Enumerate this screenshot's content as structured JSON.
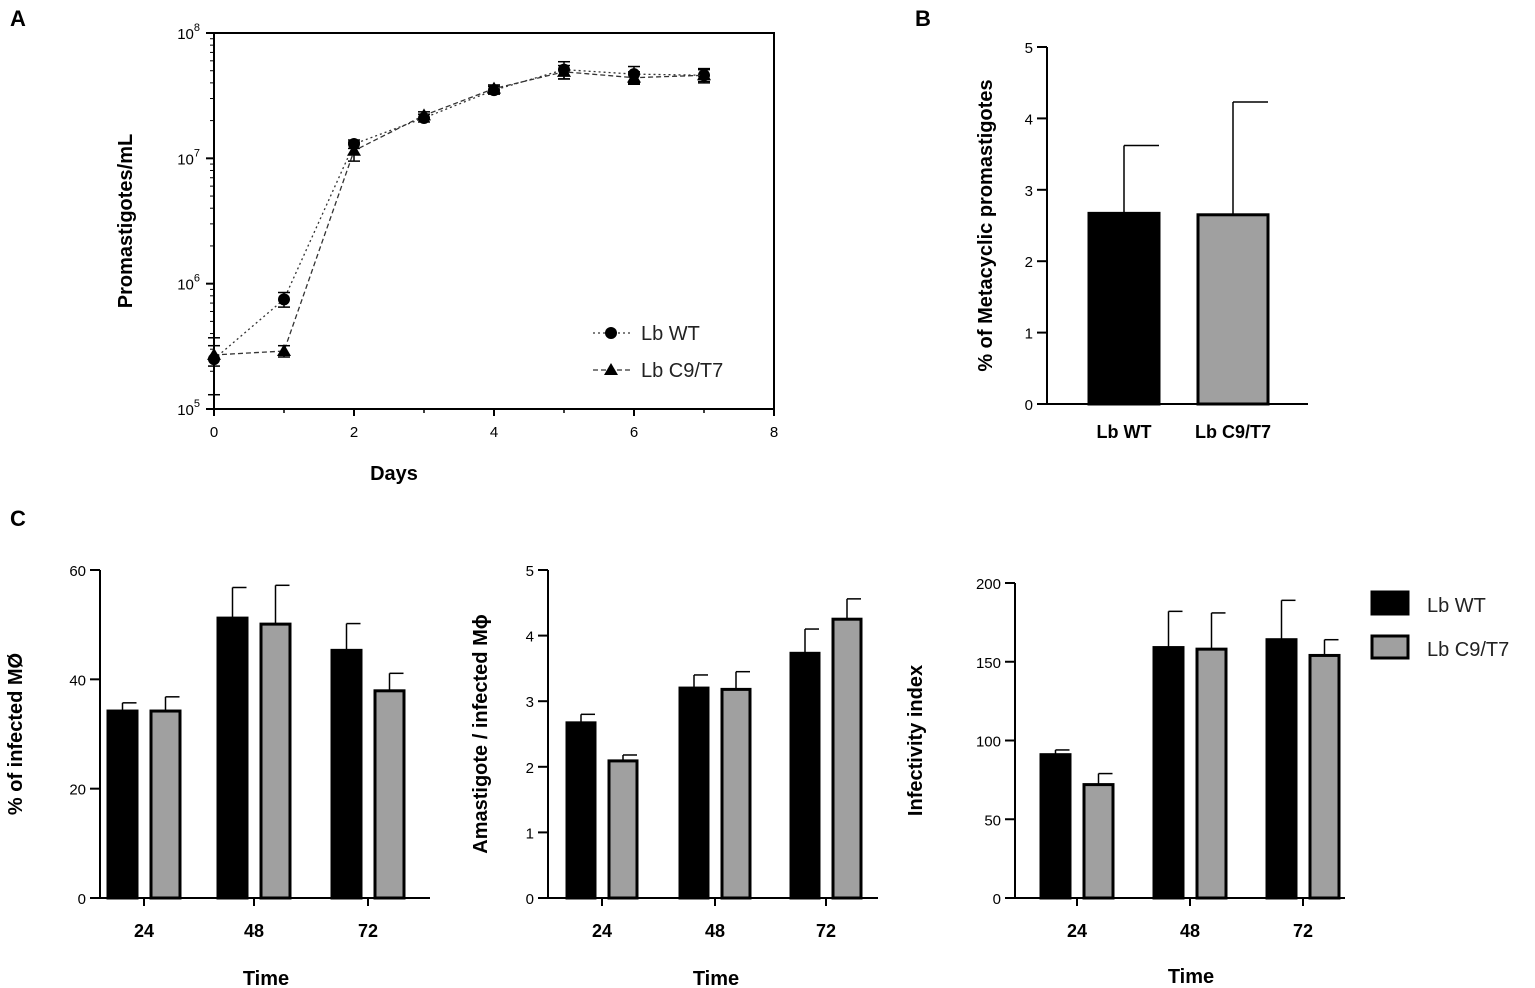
{
  "colors": {
    "wt": "#000000",
    "c9": "#a0a0a0",
    "axis": "#000000"
  },
  "legend_c": [
    {
      "label": "Lb WT",
      "color": "#000000"
    },
    {
      "label": "Lb C9/T7",
      "color": "#a0a0a0"
    }
  ],
  "chart_data": [
    {
      "panel": "A",
      "type": "line",
      "yscale": "log",
      "xlabel": "Days",
      "ylabel": "Promastigotes/mL",
      "xlim": [
        0,
        8
      ],
      "xticks": [
        "0",
        "2",
        "4",
        "6",
        "8"
      ],
      "ylim": [
        100000,
        100000000
      ],
      "yticks": [
        {
          "base": "10",
          "exp": "5"
        },
        {
          "base": "10",
          "exp": "6"
        },
        {
          "base": "10",
          "exp": "7"
        },
        {
          "base": "10",
          "exp": "8"
        }
      ],
      "legend": [
        "Lb WT",
        "Lb C9/T7"
      ],
      "series": [
        {
          "name": "Lb WT",
          "marker": "circle",
          "x": [
            0,
            1,
            2,
            3,
            4,
            5,
            6,
            7
          ],
          "y": [
            250000,
            750000,
            13000000,
            21000000,
            35000000,
            51000000,
            47000000,
            46000000
          ],
          "err": [
            120000,
            100000,
            1000000,
            1500000,
            2500000,
            8000000,
            7000000,
            6000000
          ]
        },
        {
          "name": "Lb C9/T7",
          "marker": "triangle",
          "x": [
            0,
            1,
            2,
            3,
            4,
            5,
            6,
            7
          ],
          "y": [
            270000,
            290000,
            11500000,
            22000000,
            36000000,
            49000000,
            44000000,
            46000000
          ],
          "err": [
            50000,
            30000,
            2000000,
            1500000,
            2500000,
            6000000,
            5000000,
            5000000
          ]
        }
      ]
    },
    {
      "panel": "B",
      "type": "bar",
      "ylabel": "% of Metacyclic promastigotes",
      "categories": [
        "Lb WT",
        "Lb C9/T7"
      ],
      "values": [
        2.67,
        2.65
      ],
      "err": [
        0.95,
        1.58
      ],
      "ylim": [
        0,
        5
      ],
      "yticks": [
        "0",
        "1",
        "2",
        "3",
        "4",
        "5"
      ]
    },
    {
      "panel": "C",
      "type": "bar",
      "xlabel": "Time",
      "ylabel": "% of infected MØ",
      "categories": [
        "24",
        "48",
        "72"
      ],
      "series": [
        {
          "name": "Lb WT",
          "values": [
            34.2,
            51.2,
            45.3
          ],
          "err": [
            1.5,
            5.6,
            4.9
          ]
        },
        {
          "name": "Lb C9/T7",
          "values": [
            34.2,
            50.1,
            37.9
          ],
          "err": [
            2.6,
            7.1,
            3.2
          ]
        }
      ],
      "ylim": [
        0,
        60
      ],
      "yticks": [
        "0",
        "20",
        "40",
        "60"
      ]
    },
    {
      "panel": "C",
      "type": "bar",
      "xlabel": "Time",
      "ylabel": "Amastigote / infected Mϕ",
      "categories": [
        "24",
        "48",
        "72"
      ],
      "series": [
        {
          "name": "Lb WT",
          "values": [
            2.67,
            3.2,
            3.73
          ],
          "err": [
            0.13,
            0.2,
            0.37
          ]
        },
        {
          "name": "Lb C9/T7",
          "values": [
            2.09,
            3.18,
            4.25
          ],
          "err": [
            0.09,
            0.27,
            0.31
          ]
        }
      ],
      "ylim": [
        0,
        5
      ],
      "yticks": [
        "0",
        "1",
        "2",
        "3",
        "4",
        "5"
      ]
    },
    {
      "panel": "C",
      "type": "bar",
      "xlabel": "Time",
      "ylabel": "Infectivity index",
      "categories": [
        "24",
        "48",
        "72"
      ],
      "series": [
        {
          "name": "Lb WT",
          "values": [
            91,
            159,
            164
          ],
          "err": [
            3,
            23,
            25
          ]
        },
        {
          "name": "Lb C9/T7",
          "values": [
            72,
            158,
            154
          ],
          "err": [
            7,
            23,
            10
          ]
        }
      ],
      "ylim": [
        0,
        200
      ],
      "yticks": [
        "0",
        "50",
        "100",
        "150",
        "200"
      ],
      "legend": [
        "Lb WT",
        "Lb C9/T7"
      ]
    }
  ]
}
